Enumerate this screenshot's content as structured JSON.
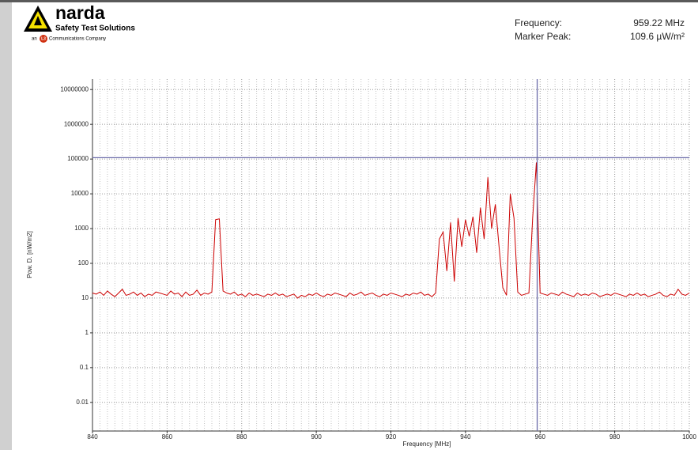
{
  "header": {
    "brand": "narda",
    "tagline": "Safety Test Solutions",
    "company_prefix": "an",
    "company_logo": "L3",
    "company": "Communications Company",
    "frequency_label": "Frequency:",
    "frequency_value": "959.22 MHz",
    "peak_label": "Marker Peak:",
    "peak_value": "109.6 µW/m²"
  },
  "chart_data": {
    "type": "line",
    "x_label": "Frequency [MHz]",
    "y_label": "Pow. D. [nW/m2]",
    "log_y": true,
    "grid": true,
    "xlim": [
      840,
      1000
    ],
    "xticks": [
      840,
      860,
      880,
      900,
      920,
      940,
      960,
      980,
      1000
    ],
    "ylim": [
      0.0015,
      20000000
    ],
    "yticks": [
      0.01,
      0.1,
      1,
      10,
      100,
      1000,
      10000,
      100000,
      1000000,
      10000000
    ],
    "marker": {
      "x": 959.22,
      "y": 109600,
      "color": "#6a6aa8"
    },
    "series": [
      {
        "color": "#cc0000",
        "x": [
          840,
          841,
          842,
          843,
          844,
          845,
          846,
          847,
          848,
          849,
          850,
          851,
          852,
          853,
          854,
          855,
          856,
          857,
          858,
          859,
          860,
          861,
          862,
          863,
          864,
          865,
          866,
          867,
          868,
          869,
          870,
          871,
          872,
          873,
          874,
          875,
          876,
          877,
          878,
          879,
          880,
          881,
          882,
          883,
          884,
          885,
          886,
          887,
          888,
          889,
          890,
          891,
          892,
          893,
          894,
          895,
          896,
          897,
          898,
          899,
          900,
          901,
          902,
          903,
          904,
          905,
          906,
          907,
          908,
          909,
          910,
          911,
          912,
          913,
          914,
          915,
          916,
          917,
          918,
          919,
          920,
          921,
          922,
          923,
          924,
          925,
          926,
          927,
          928,
          929,
          930,
          931,
          932,
          933,
          934,
          935,
          936,
          937,
          938,
          939,
          940,
          941,
          942,
          943,
          944,
          945,
          946,
          947,
          948,
          949,
          950,
          951,
          952,
          953,
          954,
          955,
          956,
          957,
          958,
          959,
          960,
          961,
          962,
          963,
          964,
          965,
          966,
          967,
          968,
          969,
          970,
          971,
          972,
          973,
          974,
          975,
          976,
          977,
          978,
          979,
          980,
          981,
          982,
          983,
          984,
          985,
          986,
          987,
          988,
          989,
          990,
          991,
          992,
          993,
          994,
          995,
          996,
          997,
          998,
          999,
          1000
        ],
        "values": [
          14,
          13,
          15,
          12,
          16,
          13,
          11,
          14,
          18,
          12,
          13,
          15,
          12,
          14,
          11,
          13,
          12,
          15,
          14,
          13,
          12,
          16,
          13,
          14,
          11,
          15,
          12,
          13,
          17,
          12,
          14,
          13,
          15,
          1800,
          1900,
          16,
          14,
          13,
          15,
          12,
          13,
          11,
          14,
          12,
          13,
          12,
          11,
          13,
          12,
          14,
          12,
          13,
          11,
          12,
          13,
          10,
          12,
          11,
          13,
          12,
          14,
          12,
          11,
          13,
          12,
          14,
          13,
          12,
          11,
          14,
          12,
          13,
          15,
          12,
          13,
          14,
          12,
          11,
          13,
          12,
          14,
          13,
          12,
          11,
          13,
          12,
          14,
          13,
          15,
          12,
          13,
          11,
          14,
          500,
          800,
          60,
          1500,
          30,
          2000,
          300,
          1800,
          600,
          2200,
          200,
          4000,
          500,
          30000,
          1000,
          5000,
          300,
          20,
          12,
          10000,
          2000,
          15,
          12,
          13,
          14,
          2000,
          80000,
          14,
          13,
          12,
          14,
          13,
          12,
          15,
          13,
          12,
          11,
          14,
          12,
          13,
          12,
          14,
          13,
          11,
          12,
          13,
          12,
          14,
          13,
          12,
          11,
          13,
          12,
          14,
          12,
          13,
          11,
          12,
          13,
          15,
          12,
          11,
          13,
          12,
          18,
          13,
          12,
          14
        ]
      }
    ]
  }
}
